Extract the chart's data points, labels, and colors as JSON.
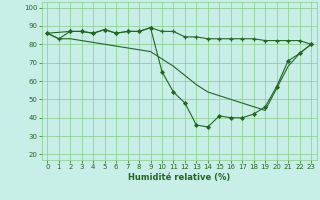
{
  "title": "",
  "xlabel": "Humidité relative (%)",
  "ylabel": "",
  "background_color": "#c8eee8",
  "grid_color": "#88cc88",
  "line_color": "#226622",
  "xlim": [
    -0.5,
    23.5
  ],
  "ylim": [
    17,
    103
  ],
  "yticks": [
    20,
    30,
    40,
    50,
    60,
    70,
    80,
    90,
    100
  ],
  "xticks": [
    0,
    1,
    2,
    3,
    4,
    5,
    6,
    7,
    8,
    9,
    10,
    11,
    12,
    13,
    14,
    15,
    16,
    17,
    18,
    19,
    20,
    21,
    22,
    23
  ],
  "series1_x": [
    0,
    1,
    2,
    3,
    4,
    5,
    6,
    7,
    8,
    9,
    10,
    11,
    12,
    13,
    14,
    15,
    16,
    17,
    18,
    19,
    20,
    21,
    22,
    23
  ],
  "series1_y": [
    86,
    83,
    87,
    87,
    86,
    88,
    86,
    87,
    87,
    89,
    87,
    87,
    84,
    84,
    83,
    83,
    83,
    83,
    83,
    82,
    82,
    82,
    82,
    80
  ],
  "series2_x": [
    0,
    2,
    3,
    4,
    5,
    6,
    7,
    8,
    9,
    10,
    11,
    12,
    13,
    14,
    15,
    16,
    17,
    18,
    19,
    20,
    21,
    22,
    23
  ],
  "series2_y": [
    86,
    87,
    87,
    86,
    88,
    86,
    87,
    87,
    89,
    65,
    54,
    48,
    36,
    35,
    41,
    40,
    40,
    42,
    46,
    57,
    71,
    75,
    80
  ],
  "series3_x": [
    0,
    1,
    2,
    3,
    4,
    5,
    6,
    7,
    8,
    9,
    10,
    11,
    12,
    13,
    14,
    15,
    16,
    17,
    18,
    19,
    20,
    21,
    22,
    23
  ],
  "series3_y": [
    86,
    83,
    83,
    82,
    81,
    80,
    79,
    78,
    77,
    76,
    72,
    68,
    63,
    58,
    54,
    52,
    50,
    48,
    46,
    44,
    56,
    68,
    75,
    80
  ],
  "xlabel_fontsize": 6,
  "tick_fontsize": 5,
  "linewidth": 0.8
}
